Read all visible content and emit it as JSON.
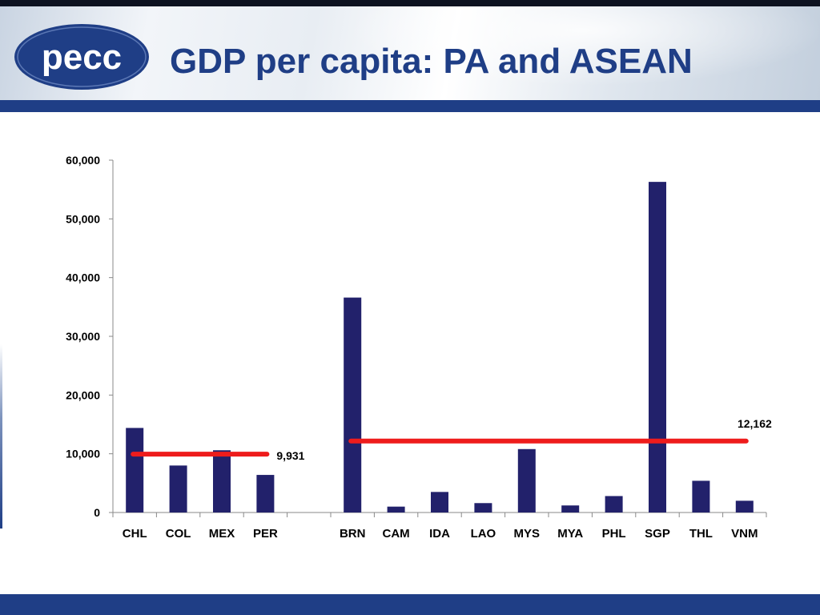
{
  "header": {
    "title": "GDP per capita: PA and ASEAN",
    "logo_text": "pecc"
  },
  "colors": {
    "bar": "#22216b",
    "average_line": "#ee1c1c",
    "title": "#1f3e86",
    "band": "#1f3e86"
  },
  "chart_data": {
    "type": "bar",
    "categories": [
      "CHL",
      "COL",
      "MEX",
      "PER",
      "",
      "BRN",
      "CAM",
      "IDA",
      "LAO",
      "MYS",
      "MYA",
      "PHL",
      "SGP",
      "THL",
      "VNM"
    ],
    "values": [
      14400,
      8000,
      10600,
      6400,
      null,
      36600,
      1000,
      3500,
      1600,
      10800,
      1200,
      2800,
      56300,
      5400,
      2000
    ],
    "ylim": [
      0,
      60000
    ],
    "yticks": [
      0,
      10000,
      20000,
      30000,
      40000,
      50000,
      60000
    ],
    "ytick_labels": [
      "0",
      "10,000",
      "20,000",
      "30,000",
      "40,000",
      "50,000",
      "60,000"
    ],
    "title": "",
    "xlabel": "",
    "ylabel": "",
    "grid": false,
    "legend": "none",
    "reference_lines": [
      {
        "value": 9931,
        "label": "9,931",
        "from_category": "CHL",
        "to_category": "PER"
      },
      {
        "value": 12162,
        "label": "12,162",
        "from_category": "BRN",
        "to_category": "VNM"
      }
    ]
  }
}
